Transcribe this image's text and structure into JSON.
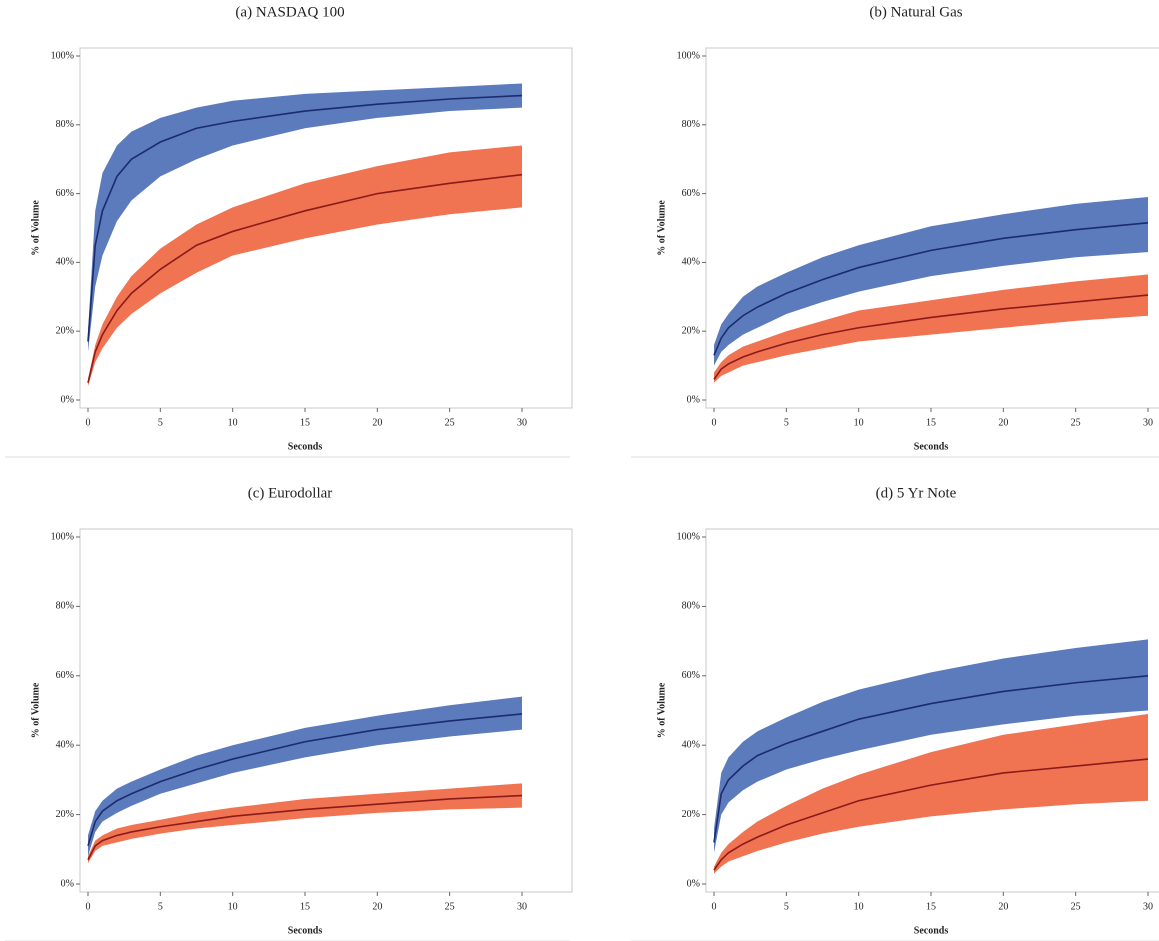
{
  "chart_data": [
    {
      "type": "band",
      "title": "(a) NASDAQ 100",
      "x_label": "Seconds",
      "y_label": "% of Volume",
      "x": [
        0,
        0.5,
        1,
        2,
        3,
        5,
        7.5,
        10,
        15,
        20,
        25,
        30
      ],
      "xlim": [
        0,
        30
      ],
      "xticks": [
        0,
        5,
        10,
        15,
        20,
        25,
        30
      ],
      "ylim": [
        0,
        100
      ],
      "yticks": [
        {
          "value": 0,
          "label": "0%"
        },
        {
          "value": 20,
          "label": "20%"
        },
        {
          "value": 40,
          "label": "40%"
        },
        {
          "value": 60,
          "label": "60%"
        },
        {
          "value": 80,
          "label": "80%"
        },
        {
          "value": 100,
          "label": "100%"
        }
      ],
      "series": [
        {
          "color": "#1c2b6e",
          "band_color": "#5b7bbd",
          "values": [
            17,
            45,
            55,
            65,
            70,
            75,
            79,
            81,
            84,
            86,
            87.5,
            88.5
          ],
          "lower": [
            14,
            33,
            42,
            52,
            58,
            65,
            70,
            74,
            79,
            82,
            84,
            85
          ],
          "upper": [
            20,
            55,
            66,
            74,
            78,
            82,
            85,
            87,
            89,
            90,
            91,
            92
          ]
        },
        {
          "color": "#8b1a1a",
          "band_color": "#f07352",
          "values": [
            5,
            14,
            19,
            26,
            31,
            38,
            45,
            49,
            55,
            60,
            63,
            65.5
          ],
          "lower": [
            4,
            11,
            15,
            21,
            25,
            31,
            37,
            42,
            47,
            51,
            54,
            56
          ],
          "upper": [
            6,
            16,
            22,
            30,
            36,
            44,
            51,
            56,
            63,
            68,
            72,
            74
          ]
        }
      ]
    },
    {
      "type": "band",
      "title": "(b) Natural Gas",
      "x_label": "Seconds",
      "y_label": "% of Volume",
      "x": [
        0,
        0.5,
        1,
        2,
        3,
        5,
        7.5,
        10,
        15,
        20,
        25,
        30
      ],
      "xlim": [
        0,
        30
      ],
      "xticks": [
        0,
        5,
        10,
        15,
        20,
        25,
        30
      ],
      "ylim": [
        0,
        100
      ],
      "yticks": [
        {
          "value": 0,
          "label": "0%"
        },
        {
          "value": 20,
          "label": "20%"
        },
        {
          "value": 40,
          "label": "40%"
        },
        {
          "value": 60,
          "label": "60%"
        },
        {
          "value": 80,
          "label": "80%"
        },
        {
          "value": 100,
          "label": "100%"
        }
      ],
      "series": [
        {
          "color": "#1c2b6e",
          "band_color": "#5b7bbd",
          "values": [
            13,
            18,
            21,
            24.5,
            27,
            31,
            35,
            38.5,
            43.5,
            47,
            49.5,
            51.5
          ],
          "lower": [
            10,
            14,
            16,
            19,
            21,
            25,
            28.5,
            31.5,
            36,
            39,
            41.5,
            43
          ],
          "upper": [
            16,
            22,
            25,
            30,
            33,
            37,
            41.5,
            45,
            50.5,
            54,
            57,
            59
          ]
        },
        {
          "color": "#8b1a1a",
          "band_color": "#f07352",
          "values": [
            6,
            9,
            10.5,
            12.5,
            14,
            16.5,
            19,
            21,
            24,
            26.5,
            28.5,
            30.5
          ],
          "lower": [
            5,
            7,
            8,
            10,
            11,
            13,
            15,
            17,
            19,
            21,
            23,
            24.5
          ],
          "upper": [
            8,
            11,
            13,
            15.5,
            17,
            20,
            23,
            26,
            29,
            32,
            34.5,
            36.5
          ]
        }
      ]
    },
    {
      "type": "band",
      "title": "(c) Eurodollar",
      "x_label": "Seconds",
      "y_label": "% of Volume",
      "x": [
        0,
        0.5,
        1,
        2,
        3,
        5,
        7.5,
        10,
        15,
        20,
        25,
        30
      ],
      "xlim": [
        0,
        30
      ],
      "xticks": [
        0,
        5,
        10,
        15,
        20,
        25,
        30
      ],
      "ylim": [
        0,
        100
      ],
      "yticks": [
        {
          "value": 0,
          "label": "0%"
        },
        {
          "value": 20,
          "label": "20%"
        },
        {
          "value": 40,
          "label": "40%"
        },
        {
          "value": 60,
          "label": "60%"
        },
        {
          "value": 80,
          "label": "80%"
        },
        {
          "value": 100,
          "label": "100%"
        }
      ],
      "series": [
        {
          "color": "#1c2b6e",
          "band_color": "#5b7bbd",
          "values": [
            11,
            18,
            21,
            24,
            26,
            29.5,
            33,
            36,
            41,
            44.5,
            47,
            49
          ],
          "lower": [
            8,
            15,
            18,
            20.5,
            22.5,
            26,
            29,
            32,
            36.5,
            40,
            42.5,
            44.5
          ],
          "upper": [
            14,
            21,
            24,
            27.5,
            29.5,
            33,
            37,
            40,
            45,
            48.5,
            51.5,
            54
          ]
        },
        {
          "color": "#8b1a1a",
          "band_color": "#f07352",
          "values": [
            7,
            11,
            12.5,
            14,
            15,
            16.5,
            18,
            19.5,
            21.5,
            23,
            24.5,
            25.5
          ],
          "lower": [
            6,
            9.5,
            11,
            12,
            13,
            14.5,
            16,
            17,
            19,
            20.5,
            21.5,
            22
          ],
          "upper": [
            8,
            12.5,
            14,
            16,
            17,
            18.5,
            20.5,
            22,
            24.5,
            26,
            27.5,
            29
          ]
        }
      ]
    },
    {
      "type": "band",
      "title": "(d) 5 Yr Note",
      "x_label": "Seconds",
      "y_label": "% of Volume",
      "x": [
        0,
        0.5,
        1,
        2,
        3,
        5,
        7.5,
        10,
        15,
        20,
        25,
        30
      ],
      "xlim": [
        0,
        30
      ],
      "xticks": [
        0,
        5,
        10,
        15,
        20,
        25,
        30
      ],
      "ylim": [
        0,
        100
      ],
      "yticks": [
        {
          "value": 0,
          "label": "0%"
        },
        {
          "value": 20,
          "label": "20%"
        },
        {
          "value": 40,
          "label": "40%"
        },
        {
          "value": 60,
          "label": "60%"
        },
        {
          "value": 80,
          "label": "80%"
        },
        {
          "value": 100,
          "label": "100%"
        }
      ],
      "series": [
        {
          "color": "#1c2b6e",
          "band_color": "#5b7bbd",
          "values": [
            12,
            26,
            30,
            34,
            37,
            40.5,
            44,
            47.5,
            52,
            55.5,
            58,
            60
          ],
          "lower": [
            9,
            20,
            23.5,
            27,
            29.5,
            33,
            36,
            38.5,
            43,
            46,
            48.5,
            50
          ],
          "upper": [
            16,
            32,
            36.5,
            41,
            44,
            48,
            52.5,
            56,
            61,
            65,
            68,
            70.5
          ]
        },
        {
          "color": "#8b1a1a",
          "band_color": "#f07352",
          "values": [
            4,
            7,
            9,
            11.5,
            13.5,
            17,
            20.5,
            24,
            28.5,
            32,
            34,
            36
          ],
          "lower": [
            3,
            5,
            6.5,
            8,
            9.5,
            12,
            14.5,
            16.5,
            19.5,
            21.5,
            23,
            24
          ],
          "upper": [
            5,
            9,
            11.5,
            15,
            18,
            22.5,
            27.5,
            31.5,
            38,
            43,
            46,
            49
          ]
        }
      ]
    }
  ]
}
